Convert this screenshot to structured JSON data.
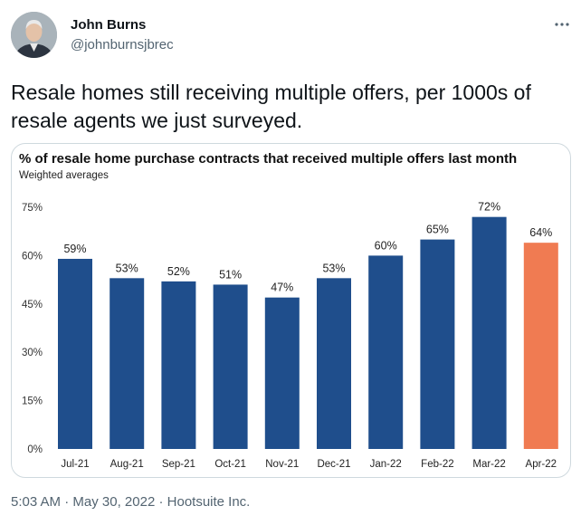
{
  "author": {
    "name": "John Burns",
    "handle": "@johnburnsjbrec"
  },
  "tweet": {
    "text": "Resale homes still receiving multiple offers, per 1000s of resale agents we just surveyed."
  },
  "meta": {
    "time": "5:03 AM",
    "date": "May 30, 2022",
    "source": "Hootsuite Inc.",
    "separator": "·"
  },
  "icons": {
    "more": "more-horizontal-icon",
    "avatar": "profile-photo"
  },
  "colors": {
    "bar_primary": "#1f4e8c",
    "bar_highlight": "#f07b52",
    "text_secondary": "#536471"
  },
  "chart_data": {
    "type": "bar",
    "title": "% of resale home purchase contracts that received multiple offers last month",
    "subtitle": "Weighted averages",
    "categories": [
      "Jul-21",
      "Aug-21",
      "Sep-21",
      "Oct-21",
      "Nov-21",
      "Dec-21",
      "Jan-22",
      "Feb-22",
      "Mar-22",
      "Apr-22"
    ],
    "values": [
      59,
      53,
      52,
      51,
      47,
      53,
      60,
      65,
      72,
      64
    ],
    "data_labels": [
      "59%",
      "53%",
      "52%",
      "51%",
      "47%",
      "53%",
      "60%",
      "65%",
      "72%",
      "64%"
    ],
    "highlight_index": 9,
    "ylim": [
      0,
      75
    ],
    "yticks": [
      0,
      15,
      30,
      45,
      60,
      75
    ],
    "ytick_labels": [
      "0%",
      "15%",
      "30%",
      "45%",
      "60%",
      "75%"
    ],
    "grid": false,
    "legend": "none"
  }
}
